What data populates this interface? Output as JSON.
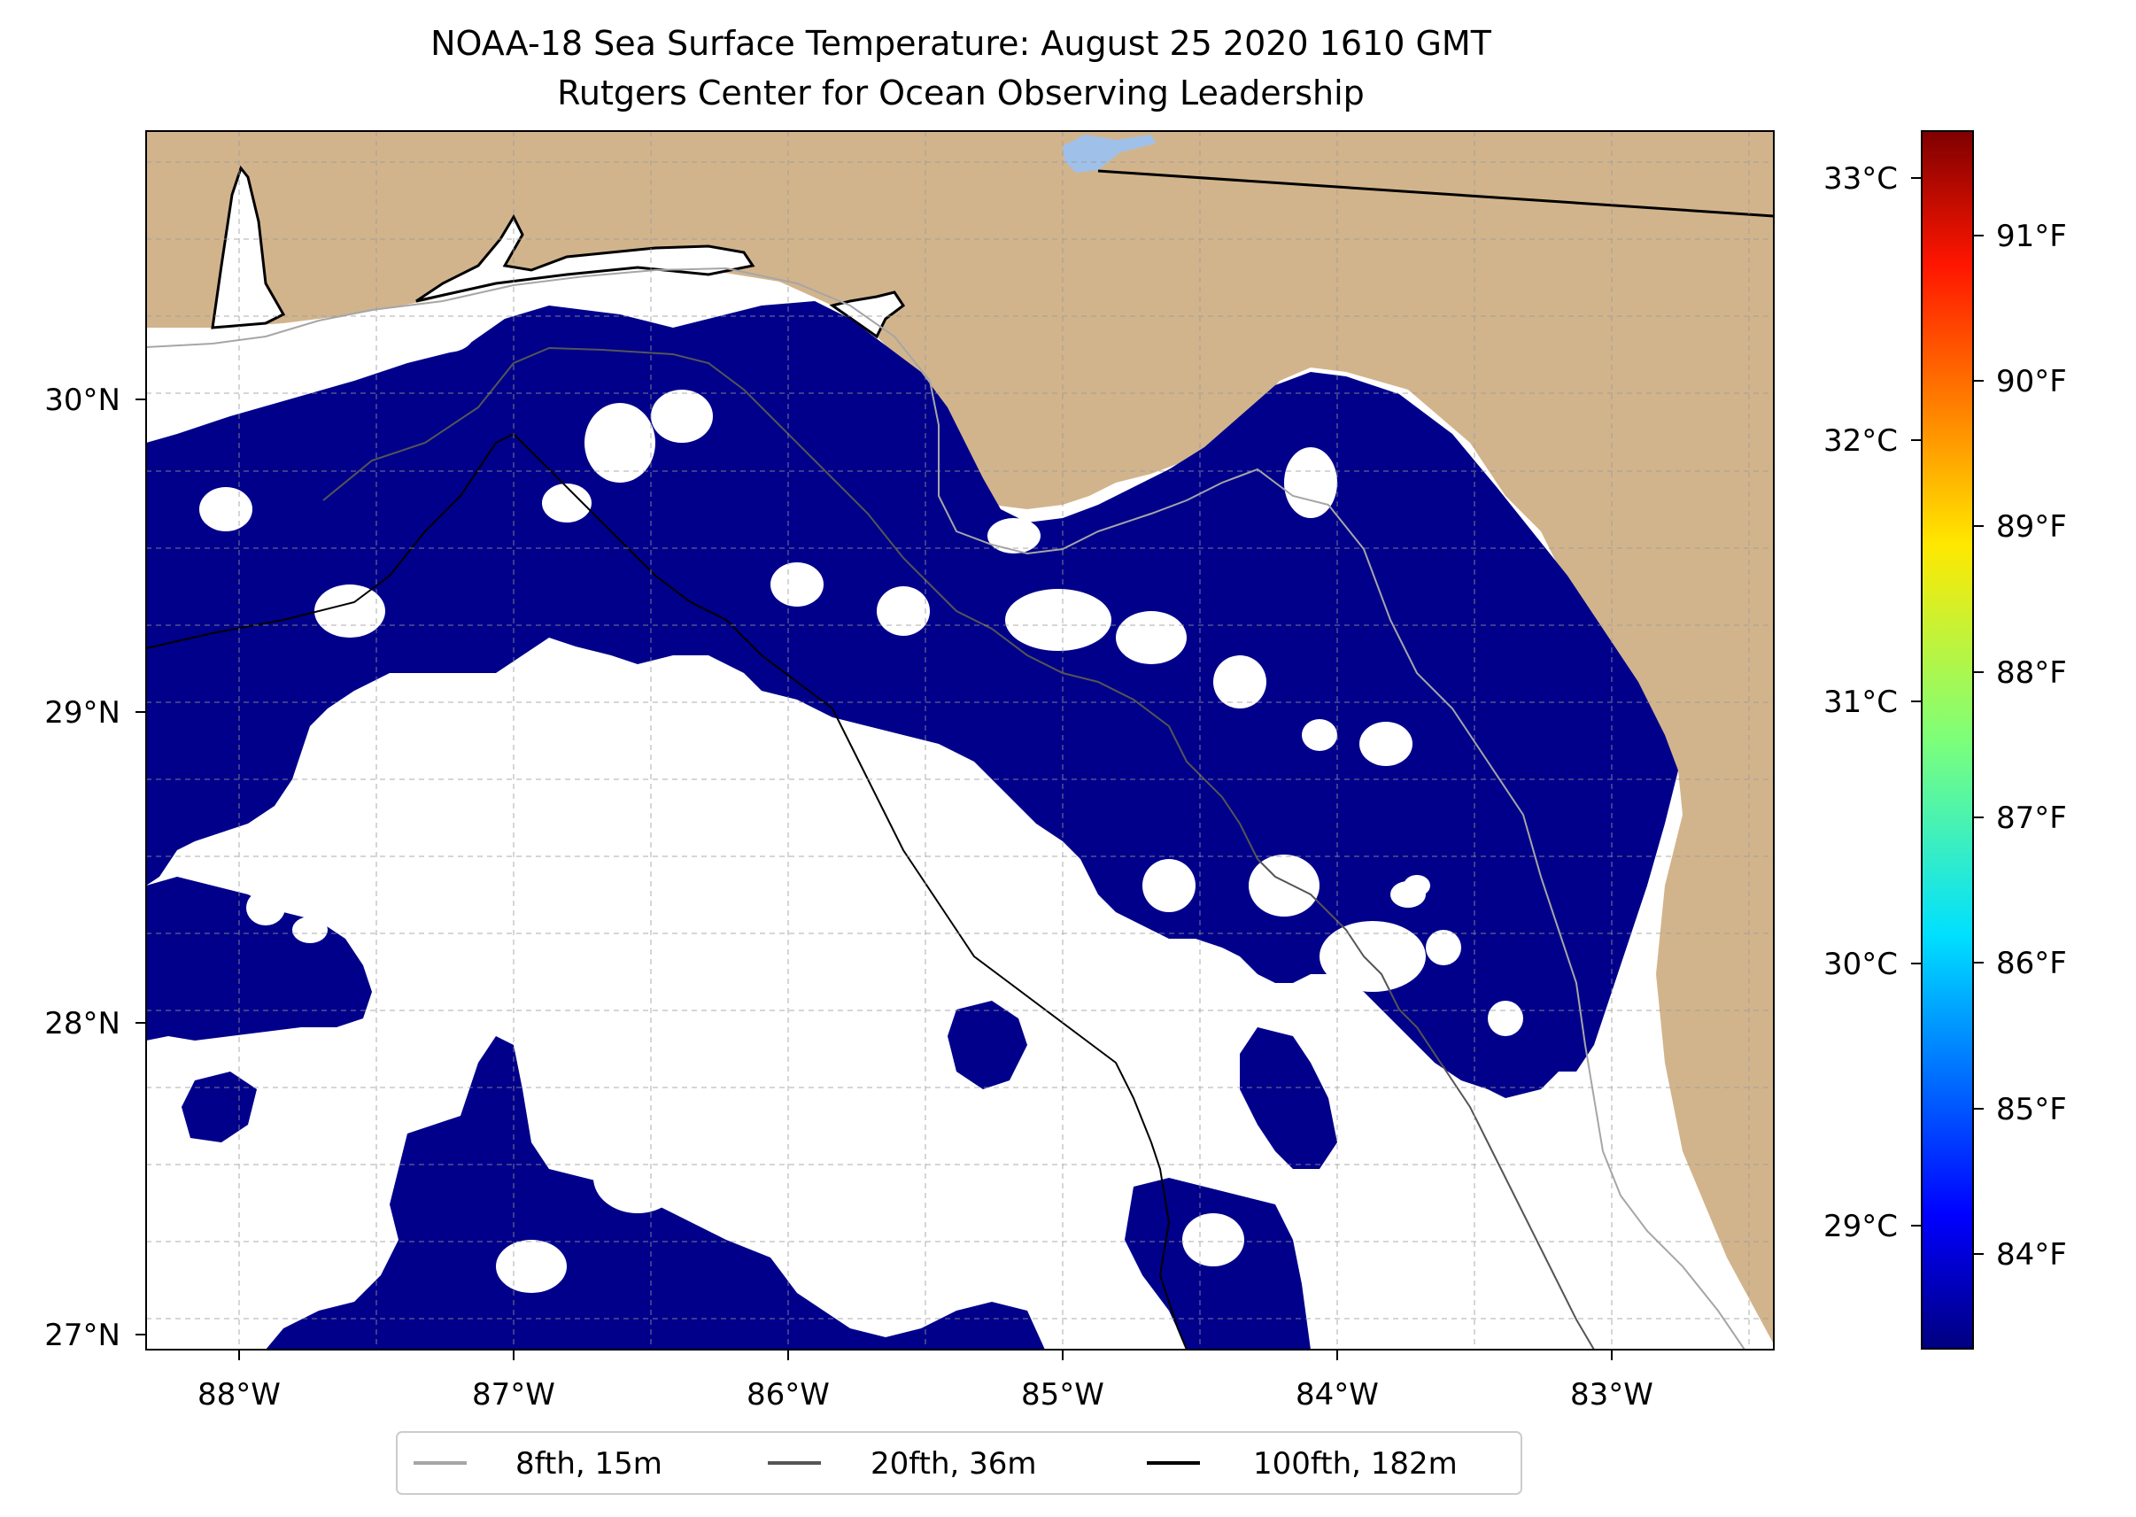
{
  "title": {
    "line1": "NOAA-18 Sea Surface Temperature: August 25 2020 1610 GMT",
    "line2": "Rutgers Center for Ocean Observing Leadership"
  },
  "map": {
    "lon_ticks": [
      {
        "value": -88,
        "label": "88°W"
      },
      {
        "value": -87,
        "label": "87°W"
      },
      {
        "value": -86,
        "label": "86°W"
      },
      {
        "value": -85,
        "label": "85°W"
      },
      {
        "value": -84,
        "label": "84°W"
      },
      {
        "value": -83,
        "label": "83°W"
      }
    ],
    "lat_ticks": [
      {
        "value": 30,
        "label": "30°N"
      },
      {
        "value": 29,
        "label": "29°N"
      },
      {
        "value": 28,
        "label": "28°N"
      },
      {
        "value": 27,
        "label": "27°N"
      }
    ],
    "lon_range": [
      -88.33,
      -82.4
    ],
    "lat_range": [
      26.94,
      30.85
    ],
    "gridlines": true,
    "colors": {
      "land": "#d2b48c",
      "sst_water": "#00008b",
      "cloud_nodata": "#ffffff",
      "lake": "#9fc0e8"
    }
  },
  "legend": {
    "placement": "bottom-center",
    "items": [
      {
        "label": "8fth, 15m",
        "color": "#a6a6a6"
      },
      {
        "label": "20fth, 36m",
        "color": "#555555"
      },
      {
        "label": "100fth, 182m",
        "color": "#000000"
      }
    ]
  },
  "colorbar": {
    "colormap": "jet",
    "celsius_ticks": [
      {
        "value": 33,
        "label": "33°C"
      },
      {
        "value": 32,
        "label": "32°C"
      },
      {
        "value": 31,
        "label": "31°C"
      },
      {
        "value": 30,
        "label": "30°C"
      },
      {
        "value": 29,
        "label": "29°C"
      }
    ],
    "fahrenheit_ticks": [
      {
        "value": 91,
        "label": "91°F"
      },
      {
        "value": 90,
        "label": "90°F"
      },
      {
        "value": 89,
        "label": "89°F"
      },
      {
        "value": 88,
        "label": "88°F"
      },
      {
        "value": 87,
        "label": "87°F"
      },
      {
        "value": 86,
        "label": "86°F"
      },
      {
        "value": 85,
        "label": "85°F"
      },
      {
        "value": 84,
        "label": "84°F"
      }
    ],
    "range_c": [
      28.5,
      33.2
    ]
  }
}
